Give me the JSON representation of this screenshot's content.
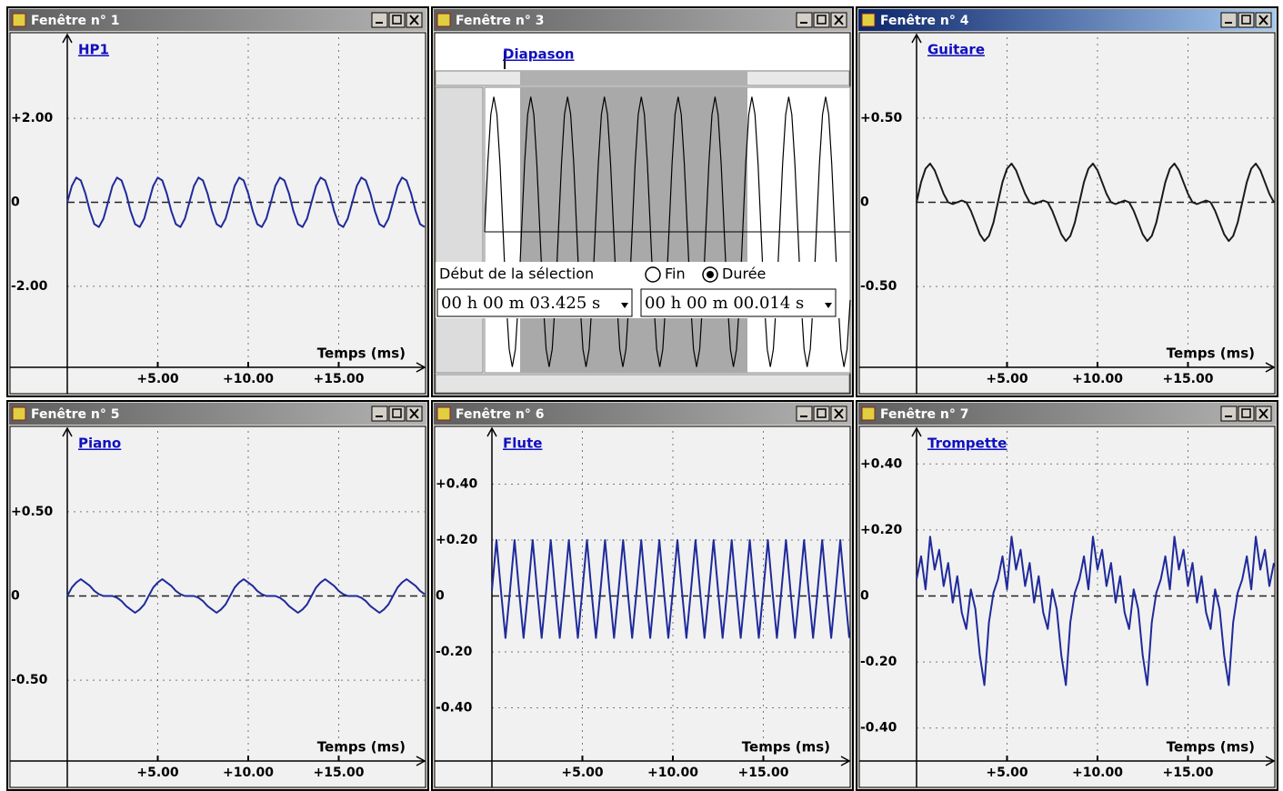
{
  "chart_data": [
    {
      "window_title": "Fenêtre n° 1",
      "active": false,
      "type": "line",
      "title": "HP1",
      "x_label": "Temps (ms)",
      "x": [
        0,
        0.25,
        0.5,
        0.75,
        1,
        1.25,
        1.5,
        1.75,
        2,
        2.25,
        2.5,
        2.75,
        3,
        3.25,
        3.5,
        3.75,
        4,
        4.25,
        4.5,
        4.75,
        5,
        5.25,
        5.5,
        5.75,
        6,
        6.25,
        6.5,
        6.75,
        7,
        7.25,
        7.5,
        7.75,
        8,
        8.25,
        8.5,
        8.75,
        9,
        9.25,
        9.5,
        9.75,
        10,
        10.25,
        10.5,
        10.75,
        11,
        11.25,
        11.5,
        11.75,
        12,
        12.25,
        12.5,
        12.75,
        13,
        13.25,
        13.5,
        13.75,
        14,
        14.25,
        14.5,
        14.75,
        15,
        15.25,
        15.5,
        15.75,
        16,
        16.25,
        16.5,
        16.75,
        17,
        17.25,
        17.5,
        17.75,
        18,
        18.25,
        18.5,
        18.75,
        19,
        19.25,
        19.5,
        19.75
      ],
      "values": [
        0,
        0.39,
        0.59,
        0.52,
        0.21,
        -0.21,
        -0.52,
        -0.59,
        -0.39,
        0,
        0.39,
        0.59,
        0.52,
        0.21,
        -0.21,
        -0.52,
        -0.59,
        -0.39,
        0,
        0.39,
        0.59,
        0.52,
        0.21,
        -0.21,
        -0.52,
        -0.59,
        -0.39,
        0,
        0.39,
        0.59,
        0.52,
        0.21,
        -0.21,
        -0.52,
        -0.59,
        -0.39,
        0,
        0.39,
        0.59,
        0.52,
        0.21,
        -0.21,
        -0.52,
        -0.59,
        -0.39,
        0,
        0.39,
        0.59,
        0.52,
        0.21,
        -0.21,
        -0.52,
        -0.59,
        -0.39,
        0,
        0.39,
        0.59,
        0.52,
        0.21,
        -0.21,
        -0.52,
        -0.59,
        -0.39,
        0,
        0.39,
        0.59,
        0.52,
        0.21,
        -0.21,
        -0.52,
        -0.59,
        -0.39,
        0,
        0.39,
        0.59,
        0.52,
        0.21,
        -0.21,
        -0.52,
        -0.59
      ],
      "color": "#1f2a9a",
      "xlim": [
        0,
        19.8
      ],
      "ylim": [
        -3.93,
        3.93
      ],
      "xticks": [
        {
          "value": 5,
          "label": "+5.00"
        },
        {
          "value": 10,
          "label": "+10.00"
        },
        {
          "value": 15,
          "label": "+15.00"
        }
      ],
      "yticks": [
        {
          "value": 2,
          "label": "+2.00"
        },
        0,
        {
          "value": -2,
          "label": "-2.00"
        }
      ],
      "grid": true
    },
    {
      "window_title": "Fenêtre n° 3",
      "active": false,
      "type": "audio",
      "title": "Diapason",
      "values": [
        0,
        0.058,
        0.1,
        0.115,
        0.1,
        0.058,
        0,
        -0.058,
        -0.1,
        -0.115,
        -0.1,
        -0.058,
        0,
        0.058,
        0.1,
        0.115,
        0.1,
        0.058,
        0,
        -0.058,
        -0.1,
        -0.115,
        -0.1,
        -0.058,
        0,
        0.058,
        0.1,
        0.115,
        0.1,
        0.058,
        0,
        -0.058,
        -0.1,
        -0.115,
        -0.1,
        -0.058,
        0,
        0.058,
        0.1,
        0.115,
        0.1,
        0.058,
        0,
        -0.058,
        -0.1,
        -0.115,
        -0.1,
        -0.058,
        0,
        0.058,
        0.1,
        0.115,
        0.1,
        0.058,
        0,
        -0.058,
        -0.1,
        -0.115,
        -0.1,
        -0.058,
        0,
        0.058,
        0.1,
        0.115,
        0.1,
        0.058,
        0,
        -0.058,
        -0.1,
        -0.115,
        -0.1,
        -0.058,
        0,
        0.058,
        0.1,
        0.115,
        0.1,
        0.058,
        0,
        -0.058,
        -0.1,
        -0.115,
        -0.1,
        -0.058,
        0,
        0.058,
        0.1,
        0.115,
        0.1,
        0.058,
        0,
        -0.058,
        -0.1,
        -0.115,
        -0.1,
        -0.058,
        0,
        0.058,
        0.1,
        0.115,
        0.1,
        0.058,
        0,
        -0.058,
        -0.1,
        -0.115,
        -0.1,
        -0.058,
        0,
        0.058,
        0.1,
        0.115,
        0.1,
        0.058,
        0,
        -0.058,
        -0.1,
        -0.115,
        -0.1,
        -0.058
      ],
      "color": "#000000",
      "ylim": [
        -0.12,
        0.12
      ],
      "selection_label": "Début de la sélection",
      "options": [
        "Fin",
        "Durée"
      ],
      "selection_start": "00 h 00 m 03.425 s",
      "selection_duration": "00 h 00 m 00.014 s"
    },
    {
      "window_title": "Fenêtre n° 4",
      "active": true,
      "type": "line",
      "title": "Guitare",
      "x_label": "Temps (ms)",
      "x": [
        0,
        0.25,
        0.5,
        0.75,
        1,
        1.25,
        1.5,
        1.75,
        2,
        2.25,
        2.5,
        2.75,
        3,
        3.25,
        3.5,
        3.75,
        4,
        4.25,
        4.5,
        4.75,
        5,
        5.25,
        5.5,
        5.75,
        6,
        6.25,
        6.5,
        6.75,
        7,
        7.25,
        7.5,
        7.75,
        8,
        8.25,
        8.5,
        8.75,
        9,
        9.25,
        9.5,
        9.75,
        10,
        10.25,
        10.5,
        10.75,
        11,
        11.25,
        11.5,
        11.75,
        12,
        12.25,
        12.5,
        12.75,
        13,
        13.25,
        13.5,
        13.75,
        14,
        14.25,
        14.5,
        14.75,
        15,
        15.25,
        15.5,
        15.75,
        16,
        16.25,
        16.5,
        16.75,
        17,
        17.25,
        17.5,
        17.75,
        18,
        18.25,
        18.5,
        18.75,
        19,
        19.25,
        19.5,
        19.75
      ],
      "values": [
        0,
        0.12,
        0.2,
        0.23,
        0.19,
        0.12,
        0.05,
        0,
        -0.01,
        0,
        0.01,
        0,
        -0.05,
        -0.12,
        -0.19,
        -0.23,
        -0.2,
        -0.12,
        0,
        0.12,
        0.2,
        0.23,
        0.19,
        0.12,
        0.05,
        0,
        -0.01,
        0,
        0.01,
        0,
        -0.05,
        -0.12,
        -0.19,
        -0.23,
        -0.2,
        -0.12,
        0,
        0.12,
        0.2,
        0.23,
        0.19,
        0.12,
        0.05,
        0,
        -0.01,
        0,
        0.01,
        0,
        -0.05,
        -0.12,
        -0.19,
        -0.23,
        -0.2,
        -0.12,
        0,
        0.12,
        0.2,
        0.23,
        0.19,
        0.12,
        0.05,
        0,
        -0.01,
        0,
        0.01,
        0,
        -0.05,
        -0.12,
        -0.19,
        -0.23,
        -0.2,
        -0.12,
        0,
        0.12,
        0.2,
        0.23,
        0.19,
        0.12,
        0.05,
        0
      ],
      "color": "#1a1a1a",
      "xlim": [
        0,
        19.8
      ],
      "ylim": [
        -0.98,
        0.98
      ],
      "xticks": [
        {
          "value": 5,
          "label": "+5.00"
        },
        {
          "value": 10,
          "label": "+10.00"
        },
        {
          "value": 15,
          "label": "+15.00"
        }
      ],
      "yticks": [
        {
          "value": 0.5,
          "label": "+0.50"
        },
        0,
        {
          "value": -0.5,
          "label": "-0.50"
        }
      ],
      "grid": true
    },
    {
      "window_title": "Fenêtre n° 5",
      "active": false,
      "type": "line",
      "title": "Piano",
      "x_label": "Temps (ms)",
      "x": [
        0,
        0.25,
        0.5,
        0.75,
        1,
        1.25,
        1.5,
        1.75,
        2,
        2.25,
        2.5,
        2.75,
        3,
        3.25,
        3.5,
        3.75,
        4,
        4.25,
        4.5,
        4.75,
        5,
        5.25,
        5.5,
        5.75,
        6,
        6.25,
        6.5,
        6.75,
        7,
        7.25,
        7.5,
        7.75,
        8,
        8.25,
        8.5,
        8.75,
        9,
        9.25,
        9.5,
        9.75,
        10,
        10.25,
        10.5,
        10.75,
        11,
        11.25,
        11.5,
        11.75,
        12,
        12.25,
        12.5,
        12.75,
        13,
        13.25,
        13.5,
        13.75,
        14,
        14.25,
        14.5,
        14.75,
        15,
        15.25,
        15.5,
        15.75,
        16,
        16.25,
        16.5,
        16.75,
        17,
        17.25,
        17.5,
        17.75,
        18,
        18.25,
        18.5,
        18.75,
        19,
        19.25,
        19.5,
        19.75
      ],
      "values": [
        0,
        0.05,
        0.08,
        0.1,
        0.08,
        0.06,
        0.03,
        0.01,
        0,
        0,
        0,
        -0.01,
        -0.03,
        -0.06,
        -0.08,
        -0.1,
        -0.08,
        -0.05,
        0,
        0.05,
        0.08,
        0.1,
        0.08,
        0.06,
        0.03,
        0.01,
        0,
        0,
        0,
        -0.01,
        -0.03,
        -0.06,
        -0.08,
        -0.1,
        -0.08,
        -0.05,
        0,
        0.05,
        0.08,
        0.1,
        0.08,
        0.06,
        0.03,
        0.01,
        0,
        0,
        0,
        -0.01,
        -0.03,
        -0.06,
        -0.08,
        -0.1,
        -0.08,
        -0.05,
        0,
        0.05,
        0.08,
        0.1,
        0.08,
        0.06,
        0.03,
        0.01,
        0,
        0,
        0,
        -0.01,
        -0.03,
        -0.06,
        -0.08,
        -0.1,
        -0.08,
        -0.05,
        0,
        0.05,
        0.08,
        0.1,
        0.08,
        0.06,
        0.03,
        0.01
      ],
      "color": "#1f2a9a",
      "xlim": [
        0,
        19.8
      ],
      "ylim": [
        -0.98,
        0.98
      ],
      "xticks": [
        {
          "value": 5,
          "label": "+5.00"
        },
        {
          "value": 10,
          "label": "+10.00"
        },
        {
          "value": 15,
          "label": "+15.00"
        }
      ],
      "yticks": [
        {
          "value": 0.5,
          "label": "+0.50"
        },
        0,
        {
          "value": -0.5,
          "label": "-0.50"
        }
      ],
      "grid": true
    },
    {
      "window_title": "Fenêtre n° 6",
      "active": false,
      "type": "line",
      "title": "Flute",
      "x_label": "Temps (ms)",
      "x": [
        0,
        0.25,
        0.5,
        0.75,
        1,
        1.25,
        1.5,
        1.75,
        2,
        2.25,
        2.5,
        2.75,
        3,
        3.25,
        3.5,
        3.75,
        4,
        4.25,
        4.5,
        4.75,
        5,
        5.25,
        5.5,
        5.75,
        6,
        6.25,
        6.5,
        6.75,
        7,
        7.25,
        7.5,
        7.75,
        8,
        8.25,
        8.5,
        8.75,
        9,
        9.25,
        9.5,
        9.75,
        10,
        10.25,
        10.5,
        10.75,
        11,
        11.25,
        11.5,
        11.75,
        12,
        12.25,
        12.5,
        12.75,
        13,
        13.25,
        13.5,
        13.75,
        14,
        14.25,
        14.5,
        14.75,
        15,
        15.25,
        15.5,
        15.75,
        16,
        16.25,
        16.5,
        16.75,
        17,
        17.25,
        17.5,
        17.75,
        18,
        18.25,
        18.5,
        18.75,
        19,
        19.25,
        19.5,
        19.75
      ],
      "values": [
        0.02,
        0.2,
        0.02,
        -0.15,
        0.02,
        0.2,
        0.02,
        -0.15,
        0.02,
        0.2,
        0.02,
        -0.15,
        0.02,
        0.2,
        0.02,
        -0.15,
        0.02,
        0.2,
        0.02,
        -0.15,
        0.02,
        0.2,
        0.02,
        -0.15,
        0.02,
        0.2,
        0.02,
        -0.15,
        0.02,
        0.2,
        0.02,
        -0.15,
        0.02,
        0.2,
        0.02,
        -0.15,
        0.02,
        0.2,
        0.02,
        -0.15,
        0.02,
        0.2,
        0.02,
        -0.15,
        0.02,
        0.2,
        0.02,
        -0.15,
        0.02,
        0.2,
        0.02,
        -0.15,
        0.02,
        0.2,
        0.02,
        -0.15,
        0.02,
        0.2,
        0.02,
        -0.15,
        0.02,
        0.2,
        0.02,
        -0.15,
        0.02,
        0.2,
        0.02,
        -0.15,
        0.02,
        0.2,
        0.02,
        -0.15,
        0.02,
        0.2,
        0.02,
        -0.15,
        0.02,
        0.2,
        0.02,
        -0.15
      ],
      "color": "#1f2a9a",
      "xlim": [
        0,
        19.8
      ],
      "ylim": [
        -0.59,
        0.59
      ],
      "xticks": [
        {
          "value": 5,
          "label": "+5.00"
        },
        {
          "value": 10,
          "label": "+10.00"
        },
        {
          "value": 15,
          "label": "+15.00"
        }
      ],
      "yticks": [
        {
          "value": 0.4,
          "label": "+0.40"
        },
        {
          "value": 0.2,
          "label": "+0.20"
        },
        0,
        {
          "value": -0.2,
          "label": "-0.20"
        },
        {
          "value": -0.4,
          "label": "-0.40"
        }
      ],
      "grid": true
    },
    {
      "window_title": "Fenêtre n° 7",
      "active": false,
      "type": "line",
      "title": "Trompette",
      "x_label": "Temps (ms)",
      "x": [
        0,
        0.25,
        0.5,
        0.75,
        1,
        1.25,
        1.5,
        1.75,
        2,
        2.25,
        2.5,
        2.75,
        3,
        3.25,
        3.5,
        3.75,
        4,
        4.25,
        4.5,
        4.75,
        5,
        5.25,
        5.5,
        5.75,
        6,
        6.25,
        6.5,
        6.75,
        7,
        7.25,
        7.5,
        7.75,
        8,
        8.25,
        8.5,
        8.75,
        9,
        9.25,
        9.5,
        9.75,
        10,
        10.25,
        10.5,
        10.75,
        11,
        11.25,
        11.5,
        11.75,
        12,
        12.25,
        12.5,
        12.75,
        13,
        13.25,
        13.5,
        13.75,
        14,
        14.25,
        14.5,
        14.75,
        15,
        15.25,
        15.5,
        15.75,
        16,
        16.25,
        16.5,
        16.75,
        17,
        17.25,
        17.5,
        17.75,
        18,
        18.25,
        18.5,
        18.75,
        19,
        19.25,
        19.5,
        19.75
      ],
      "values": [
        0.05,
        0.12,
        0.02,
        0.18,
        0.08,
        0.14,
        0.03,
        0.1,
        -0.02,
        0.06,
        -0.05,
        -0.1,
        0.02,
        -0.04,
        -0.18,
        -0.27,
        -0.08,
        0.01,
        0.05,
        0.12,
        0.02,
        0.18,
        0.08,
        0.14,
        0.03,
        0.1,
        -0.02,
        0.06,
        -0.05,
        -0.1,
        0.02,
        -0.04,
        -0.18,
        -0.27,
        -0.08,
        0.01,
        0.05,
        0.12,
        0.02,
        0.18,
        0.08,
        0.14,
        0.03,
        0.1,
        -0.02,
        0.06,
        -0.05,
        -0.1,
        0.02,
        -0.04,
        -0.18,
        -0.27,
        -0.08,
        0.01,
        0.05,
        0.12,
        0.02,
        0.18,
        0.08,
        0.14,
        0.03,
        0.1,
        -0.02,
        0.06,
        -0.05,
        -0.1,
        0.02,
        -0.04,
        -0.18,
        -0.27,
        -0.08,
        0.01,
        0.05,
        0.12,
        0.02,
        0.18,
        0.08,
        0.14,
        0.03,
        0.1
      ],
      "color": "#1f2a9a",
      "xlim": [
        0,
        19.8
      ],
      "ylim": [
        -0.5,
        0.5
      ],
      "xticks": [
        {
          "value": 5,
          "label": "+5.00"
        },
        {
          "value": 10,
          "label": "+10.00"
        },
        {
          "value": 15,
          "label": "+15.00"
        }
      ],
      "yticks": [
        {
          "value": 0.4,
          "label": "+0.40"
        },
        {
          "value": 0.2,
          "label": "+0.20"
        },
        0,
        {
          "value": -0.2,
          "label": "-0.20"
        },
        {
          "value": -0.4,
          "label": "-0.40"
        }
      ],
      "grid": true
    }
  ]
}
